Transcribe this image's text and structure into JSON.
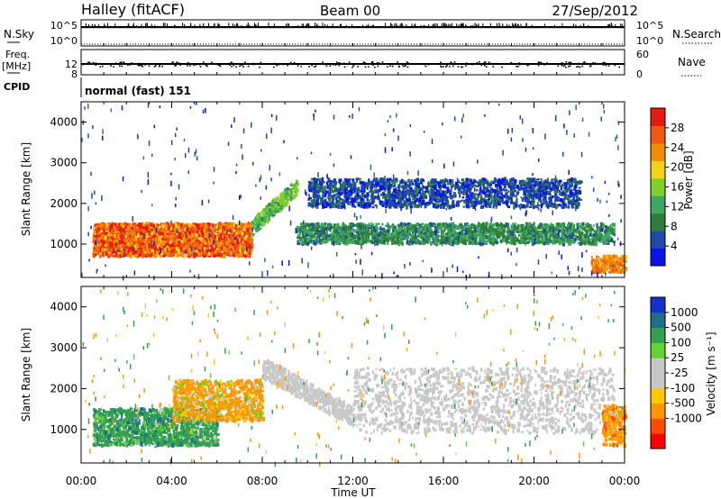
{
  "header": {
    "site": "Halley (fitACF)",
    "beam": "Beam 00",
    "date": "27/Sep/2012"
  },
  "top_panels": {
    "nsky": {
      "label": "N.Sky",
      "right_label": "N.Search",
      "ticks": [
        "10^5",
        "10^0"
      ]
    },
    "freq": {
      "label_line1": "Freq.",
      "label_line2": "[MHz]",
      "left_ticks": [
        "12",
        "8"
      ],
      "right_label": "Nave",
      "right_ticks": [
        "60",
        "0"
      ]
    },
    "cpid": {
      "label": "CPID",
      "text": "normal (fast) 151"
    }
  },
  "x_axis": {
    "label": "Time UT",
    "ticks": [
      "00:00",
      "04:00",
      "08:00",
      "12:00",
      "16:00",
      "20:00",
      "00:00"
    ]
  },
  "colors": {
    "power": [
      "#0a14e6",
      "#1e4aa6",
      "#2e7d3a",
      "#3fa860",
      "#7fd12a",
      "#f2d21a",
      "#f08c0a",
      "#ee5a10",
      "#e41a10"
    ],
    "velocity": [
      "#ff0000",
      "#ff4b00",
      "#ff9600",
      "#ffc800",
      "#c8c8c8",
      "#c8c8c8",
      "#64d232",
      "#32a050",
      "#1e6e8c",
      "#1432c8"
    ]
  },
  "chart_data": [
    {
      "type": "heatmap",
      "title": "Power",
      "ylabel": "Slant Range [km]",
      "xlabel": "Time UT",
      "x_range_hours": [
        0,
        24
      ],
      "ylim": [
        180,
        4500
      ],
      "yticks": [
        "1000",
        "2000",
        "3000",
        "4000"
      ],
      "colorbar": {
        "label": "Power [dB]",
        "ticks": [
          "4",
          "8",
          "12",
          "16",
          "20",
          "24",
          "28"
        ],
        "range": [
          0,
          32
        ]
      },
      "features": [
        {
          "name": "E-region band",
          "t_start": 0.5,
          "t_end": 7.5,
          "range_km": [
            700,
            1500
          ],
          "value": 26
        },
        {
          "name": "Rising trace",
          "t_start": 7.5,
          "t_end": 9.5,
          "range_km": [
            1400,
            2600
          ],
          "value": 14
        },
        {
          "name": "Mid band",
          "t_start": 9.5,
          "t_end": 23.5,
          "range_km": [
            1000,
            1500
          ],
          "value": 10
        },
        {
          "name": "Upper patchy echoes",
          "t_start": 10,
          "t_end": 22,
          "range_km": [
            1900,
            2600
          ],
          "value": 5
        },
        {
          "name": "Late near-range echo",
          "t_start": 22.5,
          "t_end": 24,
          "range_km": [
            300,
            700
          ],
          "value": 24
        }
      ]
    },
    {
      "type": "heatmap",
      "title": "Velocity",
      "ylabel": "Slant Range [km]",
      "xlabel": "Time UT",
      "x_range_hours": [
        0,
        24
      ],
      "ylim": [
        180,
        4500
      ],
      "yticks": [
        "1000",
        "2000",
        "3000",
        "4000"
      ],
      "colorbar": {
        "label": "Velocity [m s⁻¹]",
        "ticks": [
          "1000",
          "500",
          "100",
          "25",
          "-25",
          "-100",
          "-500",
          "-1000"
        ]
      },
      "features": [
        {
          "name": "Blue/green band",
          "t_start": 0.5,
          "t_end": 6,
          "range_km": [
            600,
            1500
          ],
          "value": 300
        },
        {
          "name": "Orange streaks",
          "t_start": 4,
          "t_end": 8,
          "range_km": [
            1200,
            2200
          ],
          "value": -200
        },
        {
          "name": "Grey ground scatter",
          "t_start": 8,
          "t_end": 23.5,
          "range_km": [
            900,
            2500
          ],
          "value": 0
        },
        {
          "name": "Late orange",
          "t_start": 23,
          "t_end": 24,
          "range_km": [
            600,
            1600
          ],
          "value": -300
        }
      ]
    }
  ]
}
